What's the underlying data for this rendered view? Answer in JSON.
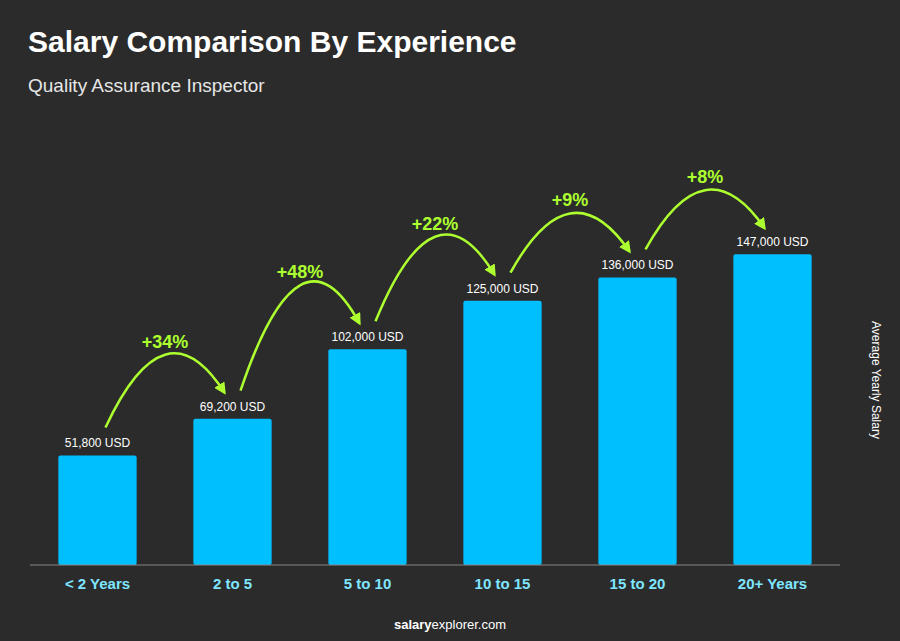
{
  "chart_data": {
    "type": "bar",
    "title": "Salary Comparison By Experience",
    "subtitle": "Quality Assurance Inspector",
    "ylabel": "Average Yearly Salary",
    "categories": [
      "< 2 Years",
      "2 to 5",
      "5 to 10",
      "10 to 15",
      "15 to 20",
      "20+ Years"
    ],
    "values": [
      51800,
      69200,
      102000,
      125000,
      136000,
      147000
    ],
    "value_labels": [
      "51,800 USD",
      "69,200 USD",
      "102,000 USD",
      "125,000 USD",
      "136,000 USD",
      "147,000 USD"
    ],
    "data_labels": true,
    "color": "#00BFFF",
    "ylim": [
      0,
      175000
    ],
    "grid": false,
    "tick_labels": "x",
    "annotations": [
      {
        "text": "+34%",
        "color": "#ADFF2F"
      },
      {
        "text": "+48%",
        "color": "#ADFF2F"
      },
      {
        "text": "+22%",
        "color": "#ADFF2F"
      },
      {
        "text": "+9%",
        "color": "#ADFF2F"
      },
      {
        "text": "+8%",
        "color": "#ADFF2F"
      }
    ],
    "footer": [
      "salary",
      "explorer.com"
    ]
  }
}
